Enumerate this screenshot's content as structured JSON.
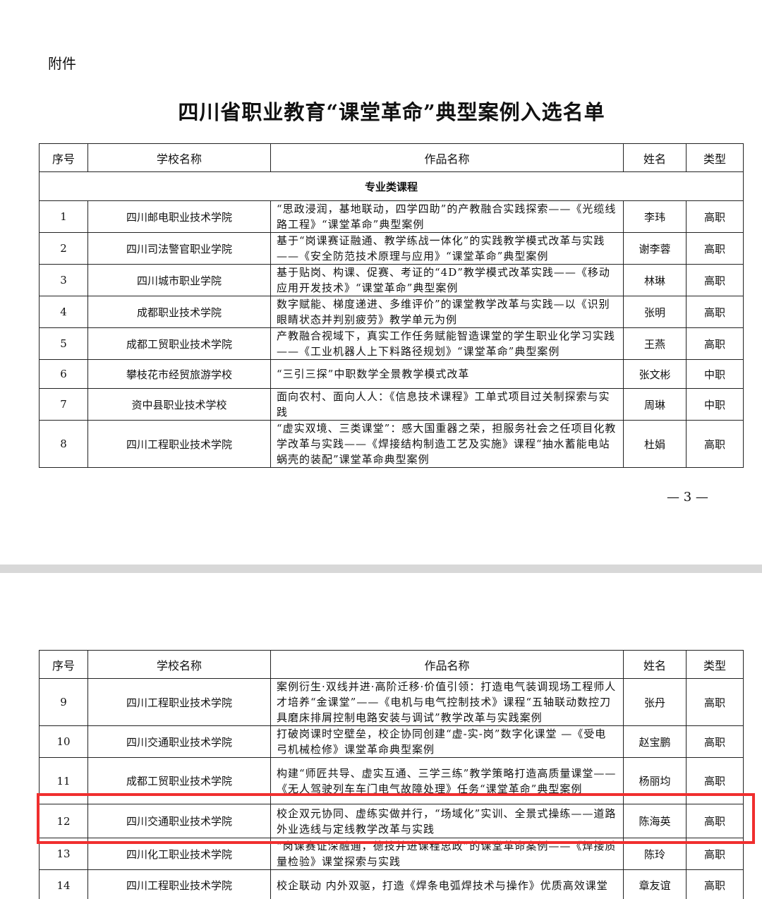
{
  "attachment_label": "附件",
  "title": "四川省职业教育“课堂革命”典型案例入选名单",
  "headers": [
    "序号",
    "学校名称",
    "作品名称",
    "姓名",
    "类型"
  ],
  "section": "专业类课程",
  "page_number": "— 3 —",
  "highlight_color": "#f02e2e",
  "page1_rows": [
    {
      "no": "1",
      "school": "四川邮电职业技术学院",
      "work": "“思政浸润，基地联动，四学四助”的产教融合实践探索——《光缆线路工程》“课堂革命”典型案例",
      "name": "李玮",
      "type": "高职"
    },
    {
      "no": "2",
      "school": "四川司法警官职业学院",
      "work": "基于“岗课赛证融通、教学练战一体化”的实践教学模式改革与实践——《安全防范技术原理与应用》“课堂革命”典型案例",
      "name": "谢李蓉",
      "type": "高职"
    },
    {
      "no": "3",
      "school": "四川城市职业学院",
      "work": "基于贴岗、构课、促赛、考证的“4D”教学模式改革实践——《移动应用开发技术》“课堂革命”典型案例",
      "name": "林琳",
      "type": "高职"
    },
    {
      "no": "4",
      "school": "成都职业技术学院",
      "work": "数字赋能、梯度递进、多维评价”的课堂教学改革与实践—以《识别眼睛状态并判别疲劳》教学单元为例",
      "name": "张明",
      "type": "高职"
    },
    {
      "no": "5",
      "school": "成都工贸职业技术学院",
      "work": "产教融合视域下，真实工作任务赋能智造课堂的学生职业化学习实践 ——《工业机器人上下料路径规划》“课堂革命”典型案例",
      "name": "王燕",
      "type": "高职"
    },
    {
      "no": "6",
      "school": "攀枝花市经贸旅游学校",
      "work": "“三引三探”中职数学全景教学模式改革",
      "name": "张文彬",
      "type": "中职"
    },
    {
      "no": "7",
      "school": "资中县职业技术学校",
      "work": "面向农村、面向人人：《信息技术课程》工单式项目过关制探索与实践",
      "name": "周琳",
      "type": "中职"
    },
    {
      "no": "8",
      "school": "四川工程职业技术学院",
      "work": "“虚实双境、三类课堂”：感大国重器之荣，担服务社会之任项目化教学改革与实践——《焊接结构制造工艺及实施》课程“抽水蓄能电站蜗壳的装配”课堂革命典型案例",
      "name": "杜娟",
      "type": "高职"
    }
  ],
  "page2_rows": [
    {
      "no": "9",
      "school": "四川工程职业技术学院",
      "work": "案例衍生·双线并进·高阶迁移·价值引领：打造电气装调现场工程师人才培养“金课堂”——《电机与电气控制技术》课程“五轴联动数控刀具磨床排屑控制电路安装与调试”教学改革与实践案例",
      "name": "张丹",
      "type": "高职"
    },
    {
      "no": "10",
      "school": "四川交通职业技术学院",
      "work": "打破岗课时空壁垒，校企协同创建“虚-实-岗”数字化课堂 —《受电弓机械检修》课堂革命典型案例",
      "name": "赵宝鹏",
      "type": "高职"
    },
    {
      "no": "11",
      "school": "成都工贸职业技术学院",
      "work": "构建“师匠共导、虚实互通、三学三练”教学策略打造高质量课堂——《无人驾驶列车车门电气故障处理》任务“课堂革命”典型案例",
      "name": "杨丽均",
      "type": "高职"
    },
    {
      "no": "12",
      "school": "四川交通职业技术学院",
      "work": "校企双元协同、虚练实做并行，“场域化”实训、全景式操练——道路外业选线与定线教学改革与实践",
      "name": "陈海英",
      "type": "高职"
    },
    {
      "no": "13",
      "school": "四川化工职业技术学院",
      "work": "“岗课赛证深融通，德技并进课程思政”的课堂革命案例——《焊接质量检验》课堂探索与实践",
      "name": "陈玲",
      "type": "高职"
    },
    {
      "no": "14",
      "school": "四川工程职业技术学院",
      "work": "校企联动 内外双驱，打造《焊条电弧焊技术与操作》优质高效课堂",
      "name": "章友谊",
      "type": "高职"
    }
  ]
}
